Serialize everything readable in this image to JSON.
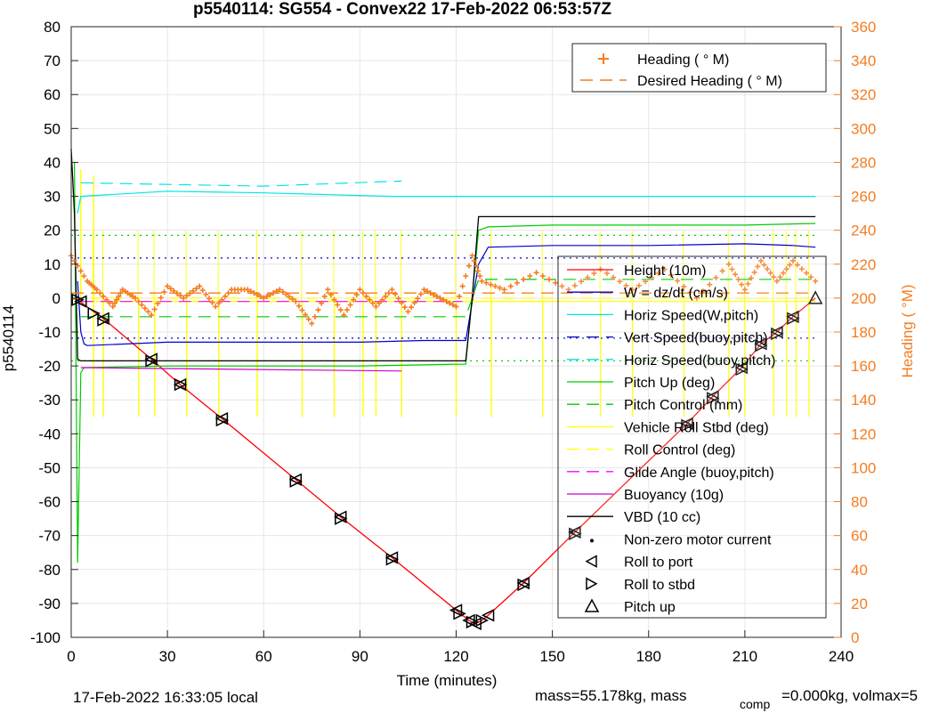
{
  "chart_data": {
    "type": "line",
    "title": "p5540114: SG554 - Convex22 17-Feb-2022 06:53:57Z",
    "xlabel": "Time (minutes)",
    "ylabel": "p5540114",
    "y2label": "Heading (  °M)",
    "xlim": [
      0,
      240
    ],
    "ylim": [
      -100,
      80
    ],
    "y2lim": [
      0,
      360
    ],
    "x_ticks": [
      "0",
      "30",
      "60",
      "90",
      "120",
      "150",
      "180",
      "210",
      "240"
    ],
    "y_ticks": [
      "80",
      "70",
      "60",
      "50",
      "40",
      "30",
      "20",
      "10",
      "0",
      "-10",
      "-20",
      "-30",
      "-40",
      "-50",
      "-60",
      "-70",
      "-80",
      "-90",
      "-100"
    ],
    "y2_ticks": [
      "360",
      "340",
      "320",
      "300",
      "280",
      "260",
      "240",
      "220",
      "200",
      "180",
      "160",
      "140",
      "120",
      "100",
      "80",
      "60",
      "40",
      "20",
      "0"
    ],
    "grid": true,
    "colors": {
      "height": "#ff0000",
      "w": "#0000cc",
      "horiz_speed": "#00e5e5",
      "pitch": "#00cc00",
      "roll": "#ffff00",
      "glide": "#ff00ff",
      "buoyancy": "#cc00cc",
      "vbd": "#000000",
      "heading": "#f47c20",
      "desired_heading": "#f47c20",
      "right_axis": "#f47c20"
    },
    "legend_top": {
      "position": "top-right",
      "entries": [
        "Heading (  ° M)",
        "Desired Heading (   ° M)"
      ]
    },
    "legend_main": {
      "position": "right",
      "entries": [
        "Height (10m)",
        "W = dz/dt (cm/s)",
        "Horiz Speed(W,pitch)",
        "Vert Speed(buoy,pitch)",
        "Horiz Speed(buoy,pitch)",
        "Pitch Up (deg)",
        "Pitch Control (mm)",
        "Vehicle Roll Stbd (deg)",
        "Roll Control (deg)",
        "Glide Angle (buoy,pitch)",
        "Buoyancy (10g)",
        "VBD (10 cc)",
        "Non-zero motor current",
        "Roll to port",
        "Roll to stbd",
        "Pitch up"
      ]
    },
    "series": [
      {
        "name": "Height (10m)",
        "x": [
          0,
          2,
          10,
          25,
          34,
          47,
          70,
          84,
          100,
          120,
          124,
          126,
          128,
          130,
          141,
          157,
          192,
          200,
          209,
          215,
          220,
          225,
          232
        ],
        "y": [
          0,
          -0.5,
          -6,
          -18,
          -25.5,
          -35.5,
          -53.5,
          -64.5,
          -76.5,
          -92,
          -95,
          -96,
          -95,
          -93.5,
          -84,
          -69,
          -37,
          -29,
          -20.5,
          -13.5,
          -10,
          -5.5,
          0
        ]
      },
      {
        "name": "W = dz/dt (cm/s)",
        "x": [
          2,
          3,
          4,
          5,
          30,
          60,
          90,
          110,
          123,
          127,
          130,
          150,
          180,
          210,
          225,
          232
        ],
        "y": [
          5,
          -10,
          -13.5,
          -14,
          -13,
          -13,
          -13,
          -12.5,
          -12.5,
          10,
          15,
          15.5,
          15.5,
          16,
          15.5,
          15
        ]
      },
      {
        "name": "Horiz Speed(W,pitch)",
        "x": [
          2,
          3,
          30,
          60,
          100,
          232
        ],
        "y": [
          25,
          30,
          31.5,
          31,
          30,
          30
        ]
      },
      {
        "name": "Vert Speed(buoy,pitch)",
        "x": [
          0,
          232
        ],
        "y": [
          11.8,
          11.8
        ]
      },
      {
        "name": "Vert Speed(buoy,pitch) lower",
        "x": [
          0,
          232
        ],
        "y": [
          -11.8,
          -11.8
        ]
      },
      {
        "name": "Horiz Speed(buoy,pitch)",
        "x": [
          3,
          30,
          60,
          103
        ],
        "y": [
          34,
          33.5,
          33,
          34.5
        ]
      },
      {
        "name": "Pitch Up (deg)",
        "x": [
          1,
          2,
          3,
          4,
          30,
          60,
          90,
          120,
          123,
          127,
          130,
          150,
          180,
          210,
          232
        ],
        "y": [
          40,
          -78,
          -22,
          -20.5,
          -20,
          -20,
          -20,
          -19.5,
          -19.5,
          20,
          21,
          21.5,
          21.5,
          21.5,
          22
        ]
      },
      {
        "name": "Pitch Control (mm)",
        "x": [
          3,
          123,
          127,
          232
        ],
        "y": [
          -5.5,
          -5.5,
          5.5,
          5.5
        ]
      },
      {
        "name": "Pitch Control levels",
        "x": [
          0,
          232
        ],
        "y": [
          18.5,
          18.5
        ]
      },
      {
        "name": "Pitch Control levels lower",
        "x": [
          0,
          232
        ],
        "y": [
          -18.5,
          -18.5
        ]
      },
      {
        "name": "Vehicle Roll Stbd (deg)",
        "x": [
          3,
          123,
          127,
          232
        ],
        "y": [
          -1,
          -1,
          -1,
          -1
        ]
      },
      {
        "name": "Roll Control (deg)",
        "x": [
          0,
          232
        ],
        "y": [
          0,
          0
        ]
      },
      {
        "name": "Glide Angle (buoy,pitch)",
        "x": [
          3,
          122
        ],
        "y": [
          -1,
          -1
        ]
      },
      {
        "name": "Buoyancy (10g)",
        "x": [
          3,
          103
        ],
        "y": [
          -20.5,
          -21.5
        ]
      },
      {
        "name": "VBD (10 cc)",
        "x": [
          0,
          1,
          2,
          3,
          123,
          125,
          127,
          232
        ],
        "y": [
          44,
          25,
          -18,
          -18.5,
          -18.5,
          0,
          24,
          24
        ]
      },
      {
        "name": "Heading (  ° M)",
        "axis": "right",
        "x": [
          0,
          5,
          8,
          13,
          16,
          20,
          25,
          30,
          35,
          40,
          45,
          50,
          55,
          60,
          65,
          70,
          75,
          80,
          85,
          90,
          95,
          100,
          105,
          110,
          115,
          120,
          125,
          128,
          135,
          145,
          155,
          165,
          175,
          185,
          195,
          205,
          210,
          215,
          220,
          225,
          232
        ],
        "y": [
          225,
          210,
          205,
          195,
          205,
          200,
          190,
          207,
          200,
          207,
          195,
          205,
          205,
          200,
          205,
          198,
          185,
          205,
          190,
          205,
          195,
          205,
          192,
          205,
          200,
          195,
          225,
          210,
          205,
          215,
          205,
          217,
          205,
          217,
          200,
          220,
          205,
          222,
          210,
          222,
          210
        ]
      },
      {
        "name": "Desired Heading (   ° M)",
        "axis": "right",
        "x": [
          0,
          232
        ],
        "y": [
          203,
          203
        ]
      }
    ],
    "roll_spikes": [
      7,
      10,
      21,
      26,
      36,
      46,
      58,
      72,
      82,
      91,
      95,
      103,
      120,
      131,
      147,
      165,
      175,
      191,
      205,
      210,
      219,
      223,
      226,
      230
    ],
    "markers": {
      "roll_to_port": [
        [
          3,
          -1
        ],
        [
          10,
          -6
        ],
        [
          25,
          -18
        ],
        [
          34,
          -25.5
        ],
        [
          47,
          -35.5
        ],
        [
          70,
          -53.5
        ],
        [
          84,
          -64.5
        ],
        [
          100,
          -76.5
        ],
        [
          120,
          -92
        ],
        [
          124,
          -95
        ],
        [
          126,
          -96
        ],
        [
          130,
          -93.5
        ],
        [
          141,
          -84
        ],
        [
          157,
          -69
        ],
        [
          192,
          -37
        ],
        [
          200,
          -29
        ],
        [
          209,
          -20.5
        ],
        [
          215,
          -13.5
        ],
        [
          220,
          -10
        ],
        [
          225,
          -5.5
        ]
      ],
      "roll_to_stbd": [
        [
          2,
          -0.5
        ],
        [
          7,
          -4.5
        ],
        [
          10,
          -6.5
        ],
        [
          25,
          -18.5
        ],
        [
          34,
          -25.5
        ],
        [
          47,
          -36
        ],
        [
          70,
          -54
        ],
        [
          84,
          -65
        ],
        [
          100,
          -77
        ],
        [
          121,
          -93
        ],
        [
          125,
          -95.5
        ],
        [
          128,
          -95
        ],
        [
          141,
          -84.5
        ],
        [
          157,
          -69.5
        ],
        [
          192,
          -37.5
        ],
        [
          200,
          -29.5
        ],
        [
          209,
          -21
        ],
        [
          215,
          -14
        ],
        [
          220,
          -10.5
        ],
        [
          225,
          -6
        ]
      ],
      "pitch_up": [
        [
          232,
          0
        ]
      ],
      "motor_current": [
        [
          156,
          -69
        ]
      ]
    }
  },
  "footer": {
    "local_time": "17-Feb-2022 16:33:05 local",
    "mass": "mass=55.178kg, mass",
    "comp": "comp",
    "comp_value": "=0.000kg, volmax=5"
  }
}
